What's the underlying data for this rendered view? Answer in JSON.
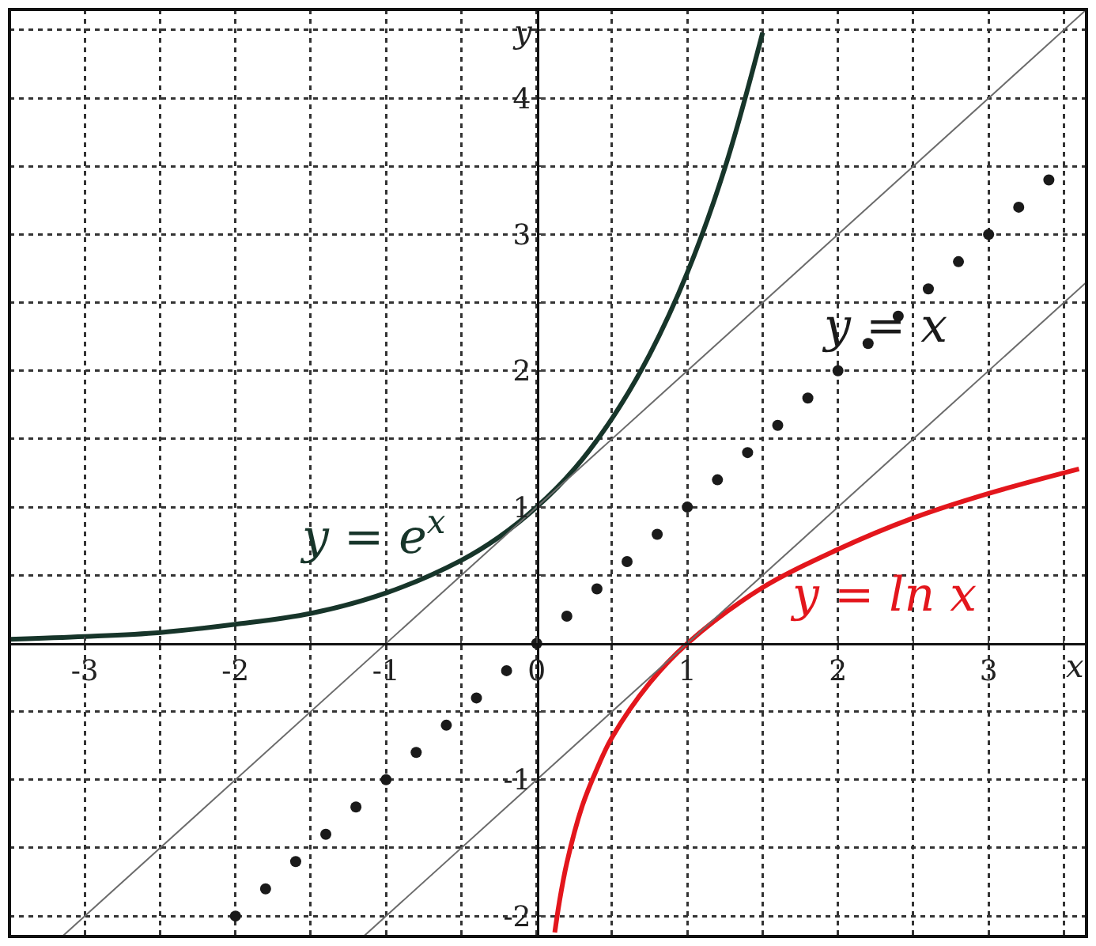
{
  "chart_data": {
    "type": "line",
    "xlabel": "x",
    "ylabel": "y",
    "xlim": [
      -3.5,
      3.65
    ],
    "ylim": [
      -2.15,
      4.65
    ],
    "xticks": [
      {
        "value": -3.5,
        "label": null
      },
      -3,
      {
        "value": -2.5,
        "label": null
      },
      -2,
      {
        "value": -1.5,
        "label": null
      },
      -1,
      {
        "value": -0.5,
        "label": null
      },
      {
        "value": 0,
        "label": "0"
      },
      {
        "value": 0.5,
        "label": null
      },
      1,
      {
        "value": 1.5,
        "label": null
      },
      2,
      {
        "value": 2.5,
        "label": null
      },
      3,
      {
        "value": 3.5,
        "label": null
      }
    ],
    "yticks": [
      {
        "value": -2,
        "label": "-2"
      },
      {
        "value": -1.5,
        "label": null
      },
      {
        "value": -1,
        "label": "-1"
      },
      {
        "value": -0.5,
        "label": null
      },
      {
        "value": 0.5,
        "label": null
      },
      1,
      {
        "value": 1.5,
        "label": null
      },
      2,
      {
        "value": 2.5,
        "label": null
      },
      3,
      {
        "value": 3.5,
        "label": null
      },
      4,
      {
        "value": 4.5,
        "label": null
      }
    ],
    "grid": true,
    "legend": false,
    "series": [
      {
        "color": "#17352a",
        "x": [
          -3.5,
          -3,
          -2.5,
          -2,
          -1.5,
          -1,
          -0.5,
          -0.25,
          0,
          0.25,
          0.5,
          0.75,
          1,
          1.25,
          1.5
        ],
        "values": [
          0.03,
          0.05,
          0.08,
          0.14,
          0.22,
          0.37,
          0.61,
          0.78,
          1,
          1.28,
          1.65,
          2.12,
          2.72,
          3.49,
          4.48
        ]
      },
      {
        "color": "#e3161c",
        "x": [
          0.12,
          0.15,
          0.2,
          0.3,
          0.4,
          0.5,
          0.75,
          1,
          1.5,
          2,
          2.5,
          3,
          3.6
        ],
        "values": [
          -2.12,
          -1.9,
          -1.61,
          -1.2,
          -0.92,
          -0.69,
          -0.29,
          0,
          0.41,
          0.69,
          0.92,
          1.1,
          1.28
        ]
      },
      {
        "type": "scatter",
        "marker": "circle",
        "color": "#1a1a1a",
        "x": [
          -2,
          -1.8,
          -1.6,
          -1.4,
          -1.2,
          -1,
          -0.8,
          -0.6,
          -0.4,
          -0.2,
          0,
          0.2,
          0.4,
          0.6,
          0.8,
          1,
          1.2,
          1.4,
          1.6,
          1.8,
          2,
          2.2,
          2.4,
          2.6,
          2.8,
          3,
          3.2,
          3.4
        ],
        "values": [
          -2,
          -1.8,
          -1.6,
          -1.4,
          -1.2,
          -1,
          -0.8,
          -0.6,
          -0.4,
          -0.2,
          0,
          0.2,
          0.4,
          0.6,
          0.8,
          1,
          1.2,
          1.4,
          1.6,
          1.8,
          2,
          2.2,
          2.4,
          2.6,
          2.8,
          3,
          3.2,
          3.4
        ]
      },
      {
        "color": "#6b6b6b",
        "x": [
          -3.15,
          3.65
        ],
        "values": [
          -2.15,
          4.65
        ]
      },
      {
        "color": "#6b6b6b",
        "x": [
          -1.15,
          3.65
        ],
        "values": [
          -2.15,
          2.65
        ]
      }
    ],
    "annotations": [
      "y = e$^{x}$",
      "y = ln x",
      "y = x"
    ]
  }
}
